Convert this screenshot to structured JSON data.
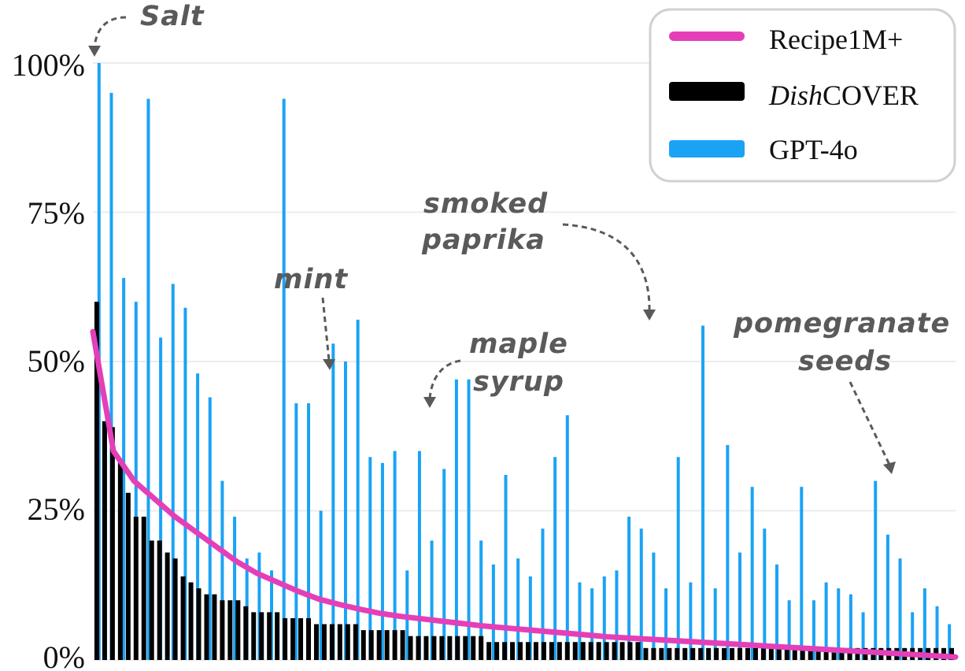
{
  "chart_data": {
    "type": "bar",
    "title": "",
    "xlabel": "",
    "ylabel": "",
    "ylim": [
      0,
      100
    ],
    "y_ticks": [
      "0%",
      "25%",
      "50%",
      "75%",
      "100%"
    ],
    "grid": "horizontal",
    "legend_position": "top-right",
    "series": [
      {
        "name": "Recipe1M+",
        "style": "line",
        "color": "#e43fb9",
        "values": [
          55.0,
          35.0,
          30.0,
          27.0,
          24.0,
          21.5,
          19.0,
          16.5,
          14.5,
          13.0,
          11.5,
          10.2,
          9.3,
          8.5,
          7.8,
          7.3,
          6.9,
          6.5,
          6.1,
          5.7,
          5.4,
          5.1,
          4.8,
          4.5,
          4.2,
          3.9,
          3.7,
          3.5,
          3.3,
          3.1,
          2.9,
          2.7,
          2.5,
          2.3,
          2.1,
          1.9,
          1.7,
          1.5,
          1.3,
          1.1,
          0.9,
          0.7,
          0.5
        ]
      },
      {
        "name": "DishCOVER",
        "style": "bar",
        "color": "#000000",
        "values": [
          60,
          40,
          39,
          33,
          28,
          24,
          24,
          20,
          20,
          18,
          17,
          14,
          13,
          12,
          11,
          11,
          10,
          10,
          10,
          9,
          8,
          8,
          8,
          8,
          7,
          7,
          7,
          7,
          6,
          6,
          6,
          6,
          6,
          6,
          5,
          5,
          5,
          5,
          5,
          5,
          4,
          4,
          4,
          4,
          4,
          4,
          4,
          4,
          4,
          4,
          3,
          3,
          3,
          3,
          3,
          3,
          3,
          3,
          3,
          3,
          3,
          3,
          3,
          3,
          3,
          3,
          3,
          3,
          3,
          3,
          2,
          2,
          2,
          2,
          2,
          2,
          2,
          2,
          2,
          2,
          2,
          2,
          2,
          2,
          2,
          2,
          2,
          2,
          2,
          2,
          2,
          2,
          2,
          2,
          2,
          2,
          2,
          2,
          2,
          2,
          2,
          2,
          2,
          2,
          2,
          2,
          2,
          2,
          2,
          2
        ]
      },
      {
        "name": "GPT-4o",
        "style": "bar",
        "color": "#1aa3f5",
        "values": [
          100,
          95,
          64,
          60,
          94,
          54,
          63,
          59,
          48,
          44,
          30,
          24,
          17,
          18,
          15,
          94,
          43,
          43,
          25,
          53,
          50,
          57,
          34,
          33,
          35,
          15,
          35,
          20,
          32,
          47,
          47,
          20,
          16,
          31,
          17,
          14,
          22,
          34,
          41,
          13,
          12,
          14,
          15,
          24,
          22,
          18,
          12,
          34,
          13,
          56,
          12,
          36,
          18,
          29,
          22,
          16,
          10,
          29,
          10,
          13,
          12,
          11,
          8,
          30,
          21,
          17,
          8,
          12,
          9,
          6
        ],
        "notes": "Approximate: values estimated from gridlines; only prominent bars captured."
      }
    ],
    "annotations": [
      {
        "text": "Salt",
        "series": "GPT-4o",
        "value": 100
      },
      {
        "text": "mint",
        "series": "GPT-4o",
        "value": 47
      },
      {
        "text": "maple",
        "series": "GPT-4o",
        "value": 41
      },
      {
        "text": "syrup",
        "series": "GPT-4o",
        "value": 41
      },
      {
        "text": "smoked",
        "series": "GPT-4o",
        "value": 56
      },
      {
        "text": "paprika",
        "series": "GPT-4o",
        "value": 56
      },
      {
        "text": "pomegranate",
        "series": "GPT-4o",
        "value": 30
      },
      {
        "text": "seeds",
        "series": "GPT-4o",
        "value": 30
      }
    ],
    "legend": {
      "entries": [
        {
          "label": "Recipe1M+",
          "color": "#e43fb9"
        },
        {
          "label_prefix_italic": "Dish",
          "label_suffix": "COVER",
          "color": "#000000"
        },
        {
          "label": "GPT-4o",
          "color": "#1aa3f5"
        }
      ]
    }
  }
}
